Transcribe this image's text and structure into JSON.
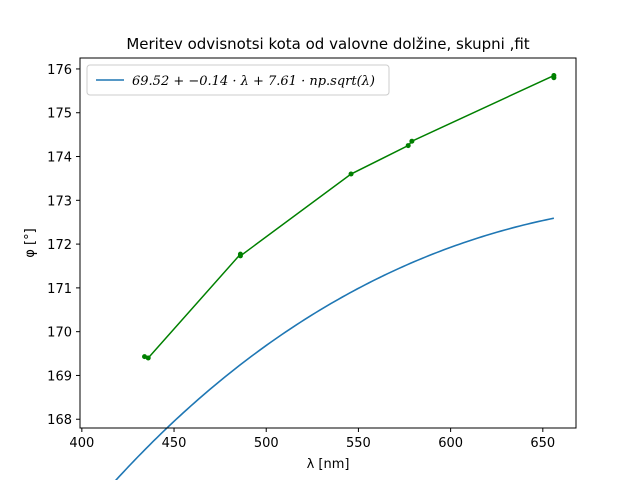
{
  "chart_data": {
    "type": "line",
    "title": "Meritev odvisnotsi kota od valovne dolžine, skupni ,fit",
    "xlabel": "λ [nm]",
    "ylabel": "φ [°]",
    "xlim": [
      399,
      668
    ],
    "ylim": [
      167.8,
      176.25
    ],
    "xticks": [
      400,
      450,
      500,
      550,
      600,
      650
    ],
    "yticks": [
      168,
      169,
      170,
      171,
      172,
      173,
      174,
      175,
      176
    ],
    "grid": false,
    "legend_position": "top-left",
    "series": [
      {
        "name": "69.52 + −0.14 · λ + 7.61 · np.sqrt(λ)",
        "kind": "fit",
        "color": "#1f77b4",
        "fit": {
          "a": 69.52,
          "b": -0.14,
          "c": 7.61,
          "x_range": [
            410,
            656
          ]
        }
      },
      {
        "kind": "measured",
        "color": "#008000",
        "points": [
          {
            "x": 434,
            "y": 169.43
          },
          {
            "x": 436,
            "y": 169.4
          },
          {
            "x": 486,
            "y": 171.77
          },
          {
            "x": 486,
            "y": 171.73
          },
          {
            "x": 546,
            "y": 173.6
          },
          {
            "x": 577,
            "y": 174.25
          },
          {
            "x": 579,
            "y": 174.35
          },
          {
            "x": 656,
            "y": 175.85
          },
          {
            "x": 656,
            "y": 175.8
          }
        ]
      }
    ]
  }
}
